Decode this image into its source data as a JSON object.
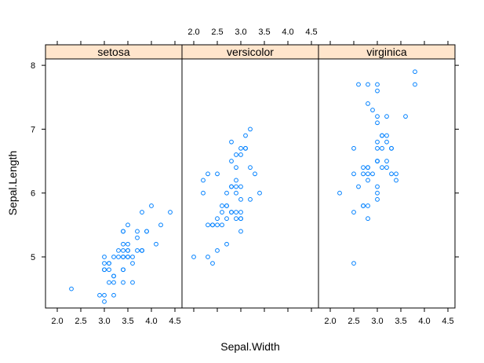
{
  "chart_data": {
    "type": "scatter",
    "xlabel": "Sepal.Width",
    "ylabel": "Sepal.Length",
    "xlim": [
      1.85,
      4.55
    ],
    "ylim": [
      4.2,
      8.1
    ],
    "x_ticks": [
      "2.0",
      "2.5",
      "3.0",
      "3.5",
      "4.0",
      "4.5"
    ],
    "x_tick_values": [
      2.0,
      2.5,
      3.0,
      3.5,
      4.0,
      4.5
    ],
    "y_ticks": [
      "5",
      "6",
      "7",
      "8"
    ],
    "y_tick_values": [
      5,
      6,
      7,
      8
    ],
    "point_color": "#0080ff",
    "strip_color": "#ffe5cc",
    "panels": [
      {
        "name": "setosa",
        "x": [
          3.5,
          3.0,
          3.2,
          3.1,
          3.6,
          3.9,
          3.4,
          3.4,
          2.9,
          3.1,
          3.7,
          3.4,
          3.0,
          3.0,
          4.0,
          4.4,
          3.9,
          3.5,
          3.8,
          3.8,
          3.4,
          3.7,
          3.6,
          3.3,
          3.4,
          3.0,
          3.4,
          3.5,
          3.4,
          3.2,
          3.1,
          3.4,
          4.1,
          4.2,
          3.1,
          3.2,
          3.5,
          3.6,
          3.0,
          3.4,
          3.5,
          2.3,
          3.2,
          3.5,
          3.8,
          3.0,
          3.8,
          3.2,
          3.7,
          3.3
        ],
        "y": [
          5.1,
          4.9,
          4.7,
          4.6,
          5.0,
          5.4,
          4.6,
          5.0,
          4.4,
          4.9,
          5.4,
          4.8,
          4.8,
          4.3,
          5.8,
          5.7,
          5.4,
          5.1,
          5.7,
          5.1,
          5.4,
          5.1,
          4.6,
          5.1,
          4.8,
          5.0,
          5.0,
          5.2,
          5.2,
          4.7,
          4.8,
          5.4,
          5.2,
          5.5,
          4.9,
          5.0,
          5.5,
          4.9,
          4.4,
          5.1,
          5.0,
          4.5,
          4.4,
          5.0,
          5.1,
          4.8,
          5.1,
          4.6,
          5.3,
          5.0
        ]
      },
      {
        "name": "versicolor",
        "x": [
          3.2,
          3.2,
          3.1,
          2.3,
          2.8,
          2.8,
          3.3,
          2.4,
          2.9,
          2.7,
          2.0,
          3.0,
          2.2,
          2.9,
          2.9,
          3.1,
          3.0,
          2.7,
          2.2,
          2.5,
          3.2,
          2.8,
          2.5,
          2.8,
          2.9,
          3.0,
          2.8,
          3.0,
          2.9,
          2.6,
          2.4,
          2.4,
          2.7,
          2.7,
          3.0,
          3.4,
          3.1,
          2.3,
          3.0,
          2.5,
          2.6,
          3.0,
          2.6,
          2.3,
          2.7,
          3.0,
          2.9,
          2.9,
          2.5,
          2.8
        ],
        "y": [
          7.0,
          6.4,
          6.9,
          5.5,
          6.5,
          5.7,
          6.3,
          4.9,
          6.6,
          5.2,
          5.0,
          5.9,
          6.0,
          6.1,
          5.6,
          6.7,
          5.6,
          5.8,
          6.2,
          5.6,
          5.9,
          6.1,
          6.3,
          6.1,
          6.4,
          6.6,
          6.8,
          6.7,
          6.0,
          5.7,
          5.5,
          5.5,
          5.8,
          6.0,
          5.4,
          6.0,
          6.7,
          6.3,
          5.6,
          5.5,
          5.5,
          6.1,
          5.8,
          5.0,
          5.6,
          5.7,
          5.7,
          6.2,
          5.1,
          5.7
        ]
      },
      {
        "name": "virginica",
        "x": [
          3.3,
          2.7,
          3.0,
          2.9,
          3.0,
          3.0,
          2.5,
          2.9,
          2.5,
          3.6,
          3.2,
          2.7,
          3.0,
          2.5,
          2.8,
          3.2,
          3.0,
          3.8,
          2.6,
          2.2,
          3.2,
          2.8,
          2.8,
          2.7,
          3.3,
          3.2,
          2.8,
          3.0,
          2.8,
          3.0,
          2.8,
          3.8,
          2.8,
          2.8,
          2.6,
          3.0,
          3.4,
          3.1,
          3.0,
          3.1,
          3.1,
          3.1,
          2.7,
          3.2,
          3.3,
          3.0,
          2.5,
          3.0,
          3.4,
          3.0
        ],
        "y": [
          6.3,
          5.8,
          7.1,
          6.3,
          6.5,
          7.6,
          4.9,
          7.3,
          6.7,
          7.2,
          6.5,
          6.4,
          6.8,
          5.7,
          5.8,
          6.4,
          6.5,
          7.7,
          7.7,
          6.0,
          6.9,
          5.6,
          7.7,
          6.3,
          6.7,
          7.2,
          6.2,
          6.1,
          6.4,
          7.2,
          7.4,
          7.9,
          6.4,
          6.3,
          6.1,
          7.7,
          6.3,
          6.4,
          6.0,
          6.9,
          6.7,
          6.9,
          5.8,
          6.8,
          6.7,
          6.7,
          6.3,
          6.5,
          6.2,
          5.9
        ]
      }
    ]
  }
}
